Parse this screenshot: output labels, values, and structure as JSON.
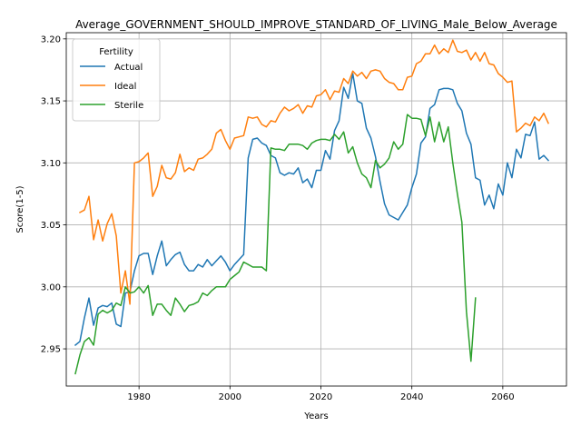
{
  "chart_data": {
    "type": "line",
    "title": "Average_GOVERNMENT_SHOULD_IMPROVE_STANDARD_OF_LIVING_Male_Below_Average",
    "xlabel": "Years",
    "ylabel": "Score(1-5)",
    "xlim": [
      1964,
      2074
    ],
    "ylim": [
      2.92,
      3.205
    ],
    "xticks": [
      1980,
      2000,
      2020,
      2040,
      2060
    ],
    "yticks": [
      2.95,
      3.0,
      3.05,
      3.1,
      3.15,
      3.2
    ],
    "ytick_labels": [
      "2.95",
      "3.00",
      "3.05",
      "3.10",
      "3.15",
      "3.20"
    ],
    "grid": true,
    "legend": {
      "title": "Fertility",
      "position": "top-left"
    },
    "series": [
      {
        "name": "Actual",
        "color": "#1f77b4",
        "x": [
          1966,
          1967,
          1968,
          1969,
          1970,
          1971,
          1972,
          1973,
          1974,
          1975,
          1976,
          1977,
          1978,
          1979,
          1980,
          1981,
          1982,
          1983,
          1984,
          1985,
          1986,
          1987,
          1988,
          1989,
          1990,
          1991,
          1992,
          1993,
          1994,
          1995,
          1996,
          1997,
          1998,
          1999,
          2000,
          2001,
          2002,
          2003,
          2004,
          2005,
          2006,
          2007,
          2008,
          2009,
          2010,
          2011,
          2012,
          2013,
          2014,
          2015,
          2016,
          2017,
          2018,
          2019,
          2020,
          2021,
          2022,
          2023,
          2024,
          2025,
          2026,
          2027,
          2028,
          2029,
          2030,
          2031,
          2032,
          2033,
          2034,
          2035,
          2036,
          2037,
          2038,
          2039,
          2040,
          2041,
          2042,
          2043,
          2044,
          2045,
          2046,
          2047,
          2048,
          2049,
          2050,
          2051,
          2052,
          2053,
          2054,
          2055,
          2056,
          2057,
          2058,
          2059,
          2060,
          2061,
          2062,
          2063,
          2064,
          2065,
          2066,
          2067,
          2068,
          2069,
          2070
        ],
        "values": [
          2.953,
          2.956,
          2.975,
          2.991,
          2.969,
          2.983,
          2.985,
          2.984,
          2.987,
          2.97,
          2.968,
          2.995,
          2.996,
          3.013,
          3.025,
          3.027,
          3.027,
          3.01,
          3.025,
          3.037,
          3.017,
          3.022,
          3.026,
          3.028,
          3.018,
          3.013,
          3.013,
          3.018,
          3.016,
          3.022,
          3.017,
          3.021,
          3.025,
          3.02,
          3.013,
          3.018,
          3.022,
          3.026,
          3.104,
          3.119,
          3.12,
          3.116,
          3.114,
          3.106,
          3.104,
          3.092,
          3.09,
          3.092,
          3.091,
          3.096,
          3.084,
          3.087,
          3.08,
          3.094,
          3.094,
          3.11,
          3.103,
          3.126,
          3.134,
          3.161,
          3.152,
          3.172,
          3.15,
          3.148,
          3.128,
          3.12,
          3.105,
          3.085,
          3.067,
          3.058,
          3.056,
          3.054,
          3.06,
          3.066,
          3.08,
          3.091,
          3.116,
          3.121,
          3.144,
          3.147,
          3.159,
          3.16,
          3.16,
          3.159,
          3.148,
          3.142,
          3.124,
          3.115,
          3.088,
          3.086,
          3.066,
          3.074,
          3.063,
          3.083,
          3.074,
          3.1,
          3.088,
          3.111,
          3.104,
          3.123,
          3.122,
          3.133,
          3.103,
          3.106,
          3.102
        ]
      },
      {
        "name": "Ideal",
        "color": "#ff7f0e",
        "x": [
          1967,
          1968,
          1969,
          1970,
          1971,
          1972,
          1973,
          1974,
          1975,
          1976,
          1977,
          1978,
          1979,
          1980,
          1981,
          1982,
          1983,
          1984,
          1985,
          1986,
          1987,
          1988,
          1989,
          1990,
          1991,
          1992,
          1993,
          1994,
          1995,
          1996,
          1997,
          1998,
          1999,
          2000,
          2001,
          2002,
          2003,
          2004,
          2005,
          2006,
          2007,
          2008,
          2009,
          2010,
          2011,
          2012,
          2013,
          2014,
          2015,
          2016,
          2017,
          2018,
          2019,
          2020,
          2021,
          2022,
          2023,
          2024,
          2025,
          2026,
          2027,
          2028,
          2029,
          2030,
          2031,
          2032,
          2033,
          2034,
          2035,
          2036,
          2037,
          2038,
          2039,
          2040,
          2041,
          2042,
          2043,
          2044,
          2045,
          2046,
          2047,
          2048,
          2049,
          2050,
          2051,
          2052,
          2053,
          2054,
          2055,
          2056,
          2057,
          2058,
          2059,
          2060,
          2061,
          2062,
          2063,
          2064,
          2065,
          2066,
          2067,
          2068,
          2069,
          2070
        ],
        "values": [
          3.06,
          3.062,
          3.073,
          3.038,
          3.054,
          3.037,
          3.051,
          3.059,
          3.041,
          2.995,
          3.013,
          2.986,
          3.1,
          3.101,
          3.104,
          3.108,
          3.073,
          3.081,
          3.098,
          3.088,
          3.087,
          3.092,
          3.107,
          3.093,
          3.096,
          3.094,
          3.103,
          3.104,
          3.107,
          3.111,
          3.124,
          3.127,
          3.118,
          3.111,
          3.12,
          3.121,
          3.122,
          3.137,
          3.136,
          3.137,
          3.131,
          3.129,
          3.134,
          3.133,
          3.14,
          3.145,
          3.142,
          3.144,
          3.147,
          3.14,
          3.146,
          3.145,
          3.154,
          3.155,
          3.159,
          3.151,
          3.158,
          3.157,
          3.168,
          3.164,
          3.174,
          3.17,
          3.173,
          3.168,
          3.174,
          3.175,
          3.174,
          3.168,
          3.165,
          3.164,
          3.159,
          3.159,
          3.169,
          3.17,
          3.18,
          3.182,
          3.188,
          3.188,
          3.195,
          3.188,
          3.192,
          3.189,
          3.199,
          3.19,
          3.189,
          3.191,
          3.183,
          3.189,
          3.182,
          3.189,
          3.18,
          3.179,
          3.172,
          3.169,
          3.165,
          3.166,
          3.125,
          3.128,
          3.132,
          3.13,
          3.137,
          3.134,
          3.14,
          3.132
        ]
      },
      {
        "name": "Sterile",
        "color": "#2ca02c",
        "x": [
          1966,
          1967,
          1968,
          1969,
          1970,
          1971,
          1972,
          1973,
          1974,
          1975,
          1976,
          1977,
          1978,
          1979,
          1980,
          1981,
          1982,
          1983,
          1984,
          1985,
          1986,
          1987,
          1988,
          1989,
          1990,
          1991,
          1992,
          1993,
          1994,
          1995,
          1996,
          1997,
          1998,
          1999,
          2000,
          2001,
          2002,
          2003,
          2004,
          2005,
          2006,
          2007,
          2008,
          2009,
          2010,
          2011,
          2012,
          2013,
          2014,
          2015,
          2016,
          2017,
          2018,
          2019,
          2020,
          2021,
          2022,
          2023,
          2024,
          2025,
          2026,
          2027,
          2028,
          2029,
          2030,
          2031,
          2032,
          2033,
          2034,
          2035,
          2036,
          2037,
          2038,
          2039,
          2040,
          2041,
          2042,
          2043,
          2044,
          2045,
          2046,
          2047,
          2048,
          2049,
          2050,
          2051,
          2052,
          2053,
          2054
        ],
        "values": [
          2.93,
          2.945,
          2.956,
          2.959,
          2.953,
          2.978,
          2.981,
          2.979,
          2.981,
          2.987,
          2.985,
          3.0,
          2.995,
          2.996,
          3.0,
          2.995,
          3.001,
          2.977,
          2.986,
          2.986,
          2.981,
          2.977,
          2.991,
          2.986,
          2.98,
          2.985,
          2.986,
          2.988,
          2.995,
          2.993,
          2.997,
          3.0,
          3.0,
          3.0,
          3.006,
          3.009,
          3.012,
          3.02,
          3.018,
          3.016,
          3.016,
          3.016,
          3.013,
          3.112,
          3.111,
          3.111,
          3.11,
          3.115,
          3.115,
          3.115,
          3.114,
          3.111,
          3.116,
          3.118,
          3.119,
          3.119,
          3.118,
          3.123,
          3.119,
          3.125,
          3.108,
          3.113,
          3.1,
          3.091,
          3.088,
          3.08,
          3.102,
          3.096,
          3.099,
          3.104,
          3.117,
          3.111,
          3.115,
          3.139,
          3.136,
          3.136,
          3.135,
          3.122,
          3.137,
          3.117,
          3.133,
          3.117,
          3.129,
          3.1,
          3.075,
          3.052,
          2.98,
          2.94,
          2.991
        ]
      }
    ]
  }
}
